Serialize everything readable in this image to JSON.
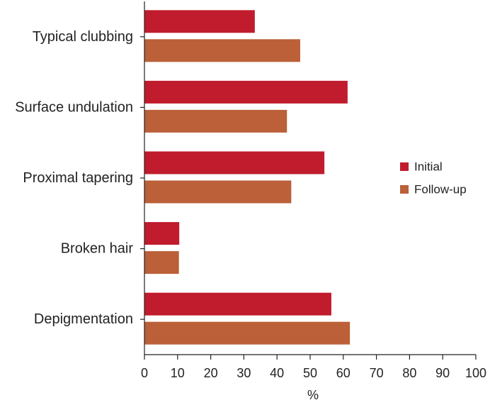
{
  "chart_data": {
    "type": "bar",
    "orientation": "horizontal",
    "categories": [
      "Typical clubbing",
      "Surface undulation",
      "Proximal tapering",
      "Broken hair",
      "Depigmentation"
    ],
    "series": [
      {
        "name": "Initial",
        "color": "#c01c2e",
        "values": [
          33.3,
          61.3,
          54.3,
          10.5,
          56.4
        ]
      },
      {
        "name": "Follow-up",
        "color": "#bb6038",
        "values": [
          47.0,
          43.0,
          44.3,
          10.4,
          62.0
        ]
      }
    ],
    "xlabel": "%",
    "ylabel": "",
    "xlim": [
      0,
      100
    ],
    "xticks": [
      "0",
      "10",
      "20",
      "30",
      "40",
      "50",
      "60",
      "70",
      "80",
      "90",
      "100"
    ],
    "grid": false,
    "legend_position": "right"
  }
}
